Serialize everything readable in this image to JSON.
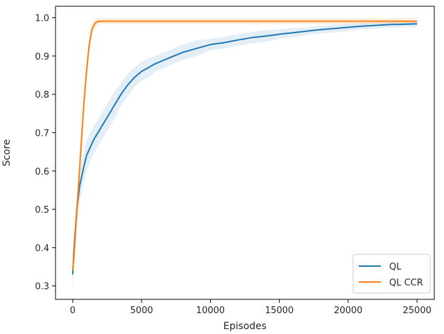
{
  "chart_data": {
    "type": "line",
    "title": "",
    "xlabel": "Episodes",
    "ylabel": "Score",
    "xlim": [
      -1250,
      26250
    ],
    "ylim": [
      0.265,
      1.03
    ],
    "xticks": [
      0,
      5000,
      10000,
      15000,
      20000,
      25000
    ],
    "yticks": [
      0.3,
      0.4,
      0.5,
      0.6,
      0.7,
      0.8,
      0.9,
      1.0
    ],
    "grid": false,
    "legend": "lower-right",
    "series": [
      {
        "name": "QL",
        "color": "#1f77b4",
        "x": [
          0,
          100,
          300,
          500,
          800,
          1000,
          1500,
          2000,
          2500,
          3000,
          3500,
          4000,
          4500,
          5000,
          5500,
          6000,
          7000,
          8000,
          9000,
          10000,
          11000,
          12000,
          13000,
          14000,
          15000,
          16000,
          17000,
          18000,
          19000,
          20000,
          21000,
          22000,
          23000,
          24000,
          25000
        ],
        "y": [
          0.33,
          0.4,
          0.5,
          0.56,
          0.61,
          0.64,
          0.68,
          0.71,
          0.74,
          0.77,
          0.8,
          0.825,
          0.845,
          0.86,
          0.87,
          0.88,
          0.895,
          0.91,
          0.92,
          0.93,
          0.935,
          0.942,
          0.948,
          0.952,
          0.957,
          0.961,
          0.965,
          0.969,
          0.972,
          0.975,
          0.978,
          0.98,
          0.982,
          0.983,
          0.984
        ],
        "band": [
          0.04,
          0.04,
          0.04,
          0.04,
          0.04,
          0.04,
          0.035,
          0.035,
          0.035,
          0.035,
          0.03,
          0.03,
          0.025,
          0.025,
          0.025,
          0.02,
          0.02,
          0.02,
          0.02,
          0.015,
          0.015,
          0.015,
          0.015,
          0.015,
          0.012,
          0.012,
          0.01,
          0.01,
          0.01,
          0.01,
          0.008,
          0.008,
          0.008,
          0.008,
          0.008
        ]
      },
      {
        "name": "QL CCR",
        "color": "#ff7f0e",
        "x": [
          0,
          100,
          200,
          400,
          600,
          800,
          1000,
          1200,
          1400,
          1600,
          1800,
          2000,
          2500,
          3000,
          4000,
          5000,
          6000,
          8000,
          10000,
          12000,
          14000,
          16000,
          18000,
          20000,
          22000,
          24000,
          25000
        ],
        "y": [
          0.34,
          0.38,
          0.44,
          0.55,
          0.66,
          0.77,
          0.86,
          0.93,
          0.97,
          0.985,
          0.99,
          0.991,
          0.991,
          0.991,
          0.991,
          0.991,
          0.991,
          0.991,
          0.991,
          0.991,
          0.991,
          0.991,
          0.991,
          0.991,
          0.991,
          0.991,
          0.991
        ],
        "band": [
          0.04,
          0.04,
          0.04,
          0.04,
          0.04,
          0.03,
          0.025,
          0.02,
          0.015,
          0.012,
          0.01,
          0.008,
          0.008,
          0.008,
          0.008,
          0.008,
          0.008,
          0.008,
          0.008,
          0.008,
          0.008,
          0.008,
          0.008,
          0.008,
          0.008,
          0.008,
          0.008
        ]
      }
    ]
  }
}
